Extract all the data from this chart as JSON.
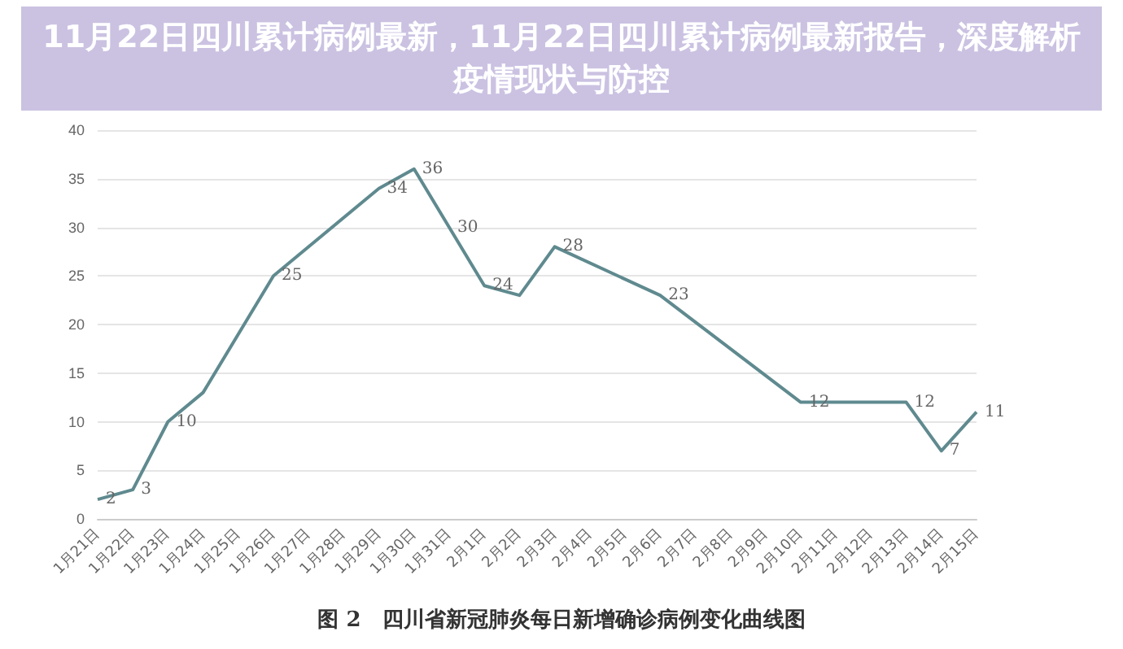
{
  "chart_data": {
    "type": "line",
    "title": "11月22日四川累计病例最新，11月22日四川累计病例最新报告，深度解析疫情现状与防控",
    "annotations": [
      "图 2　四川省新冠肺炎每日新增确诊病例变化曲线图"
    ],
    "categories": [
      "1月21日",
      "1月22日",
      "1月23日",
      "1月24日",
      "1月25日",
      "1月26日",
      "1月27日",
      "1月28日",
      "1月29日",
      "1月30日",
      "1月31日",
      "2月1日",
      "2月2日",
      "2月3日",
      "2月4日",
      "2月5日",
      "2月6日",
      "2月7日",
      "2月8日",
      "2月9日",
      "2月10日",
      "2月11日",
      "2月12日",
      "2月13日",
      "2月14日",
      "2月15日"
    ],
    "series": [
      {
        "color": "#5f8a8f",
        "values": [
          2,
          3,
          10,
          13,
          null,
          25,
          null,
          null,
          34,
          36,
          30,
          24,
          23,
          28,
          null,
          null,
          23,
          null,
          null,
          null,
          12,
          null,
          null,
          12,
          7,
          11
        ],
        "value_labels": [
          "2",
          "3",
          "10",
          null,
          null,
          "25",
          null,
          null,
          "34",
          "36",
          "30",
          "24",
          null,
          "28",
          null,
          null,
          "23",
          null,
          null,
          null,
          "12",
          null,
          null,
          "12",
          "7",
          "11"
        ]
      }
    ],
    "ylim": [
      0,
      40
    ],
    "yticks": [
      0,
      5,
      10,
      15,
      20,
      25,
      30,
      35,
      40
    ],
    "grid": "y",
    "marker": "none",
    "line_style": "solid"
  }
}
